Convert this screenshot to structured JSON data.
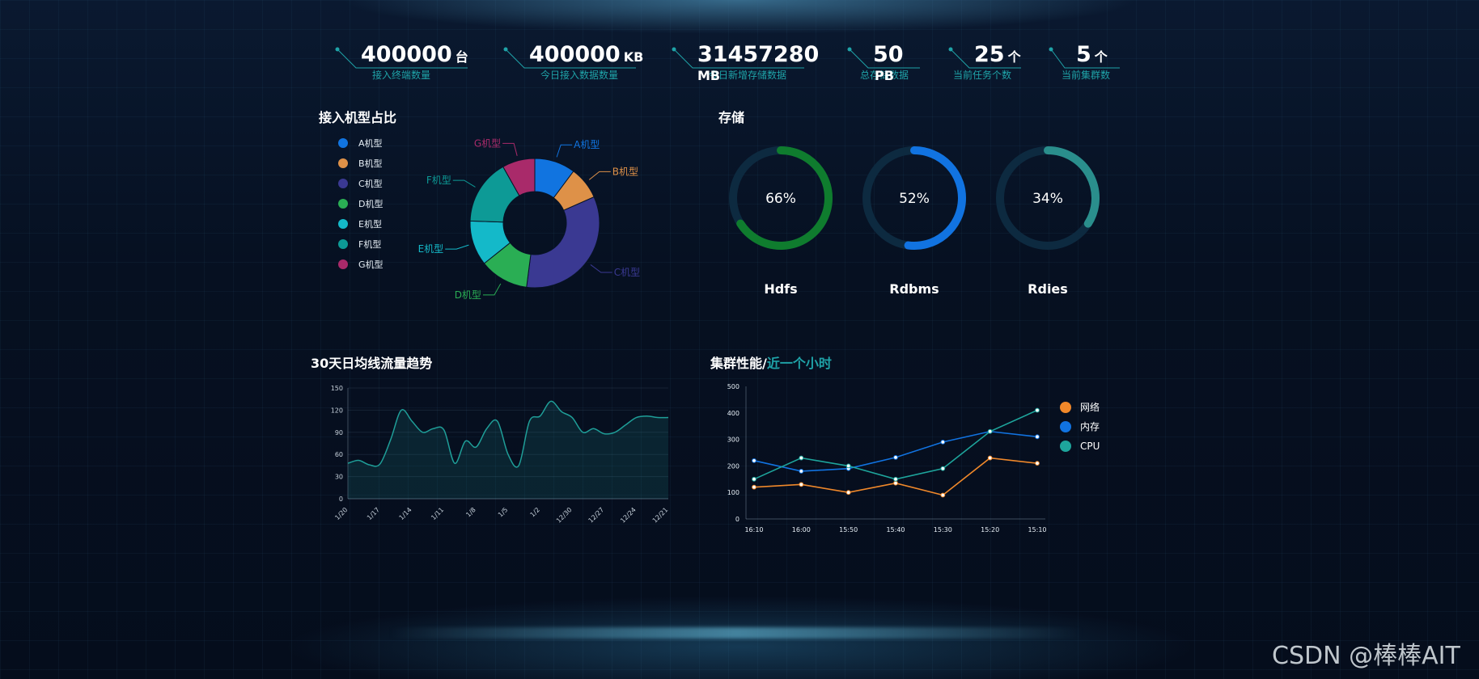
{
  "stats": [
    {
      "value": "400000",
      "unit": "台",
      "label": "接入终端数量"
    },
    {
      "value": "400000",
      "unit": "KB",
      "label": "今日接入数据数量"
    },
    {
      "value": "31457280",
      "unit": "MB",
      "label": "今日新增存储数据"
    },
    {
      "value": "50",
      "unit": "PB",
      "label": "总存储数据"
    },
    {
      "value": "25",
      "unit": "个",
      "label": "当前任务个数"
    },
    {
      "value": "5",
      "unit": "个",
      "label": "当前集群数"
    }
  ],
  "panels": {
    "pie_title": "接入机型占比",
    "storage_title": "存储",
    "trend_title": "30天日均线流量趋势",
    "cluster_title_main": "集群性能/",
    "cluster_title_accent": "近一个小时"
  },
  "chart_data": [
    {
      "type": "pie",
      "donut": true,
      "labels": [
        "A机型",
        "B机型",
        "C机型",
        "D机型",
        "E机型",
        "F机型",
        "G机型"
      ],
      "values": [
        10,
        8,
        33,
        12,
        11,
        16,
        8
      ],
      "colors": [
        "#1174e0",
        "#de9148",
        "#3a3992",
        "#2aae54",
        "#14b9c9",
        "#0d9a96",
        "#a92a6a"
      ],
      "legend_position": "left"
    },
    {
      "type": "gauge",
      "items": [
        {
          "name": "Hdfs",
          "percent": 66,
          "color": "#0f7c2e"
        },
        {
          "name": "Rdbms",
          "percent": 52,
          "color": "#1173e1"
        },
        {
          "name": "Rdies",
          "percent": 34,
          "color": "#2a8e8c"
        }
      ],
      "track_color": "#0d2a40"
    },
    {
      "type": "area",
      "title": "30天日均线流量趋势",
      "categories": [
        "1/20",
        "1/17",
        "1/14",
        "1/11",
        "1/8",
        "1/5",
        "1/2",
        "12/30",
        "12/27",
        "12/24",
        "12/21"
      ],
      "x_rotated_ticks": true,
      "x": [
        0,
        1,
        2,
        3,
        4,
        5,
        6,
        7,
        8,
        9,
        10,
        11,
        12,
        13,
        14,
        15,
        16,
        17,
        18,
        19,
        20,
        21,
        22,
        23,
        24,
        25,
        26,
        27,
        28,
        29,
        30
      ],
      "values": [
        48,
        52,
        46,
        47,
        80,
        120,
        105,
        90,
        95,
        93,
        48,
        78,
        70,
        95,
        105,
        60,
        45,
        105,
        112,
        132,
        118,
        110,
        90,
        95,
        88,
        90,
        100,
        110,
        112,
        110,
        110
      ],
      "ylim": [
        0,
        150
      ],
      "yticks": [
        0,
        30,
        60,
        90,
        120,
        150
      ],
      "color": "#1f9e98"
    },
    {
      "type": "line",
      "categories": [
        "16:10",
        "16:00",
        "15:50",
        "15:40",
        "15:30",
        "15:20",
        "15:10"
      ],
      "series": [
        {
          "name": "网络",
          "values": [
            120,
            130,
            100,
            135,
            90,
            230,
            210
          ],
          "color": "#f0882a"
        },
        {
          "name": "内存",
          "values": [
            220,
            180,
            190,
            232,
            290,
            330,
            310
          ],
          "color": "#1173e1"
        },
        {
          "name": "CPU",
          "values": [
            150,
            230,
            200,
            150,
            190,
            330,
            410
          ],
          "color": "#1ea59c"
        }
      ],
      "ylim": [
        0,
        500
      ],
      "yticks": [
        0,
        100,
        200,
        300,
        400,
        500
      ],
      "legend_position": "right"
    }
  ],
  "watermark": "CSDN @棒棒AIT"
}
